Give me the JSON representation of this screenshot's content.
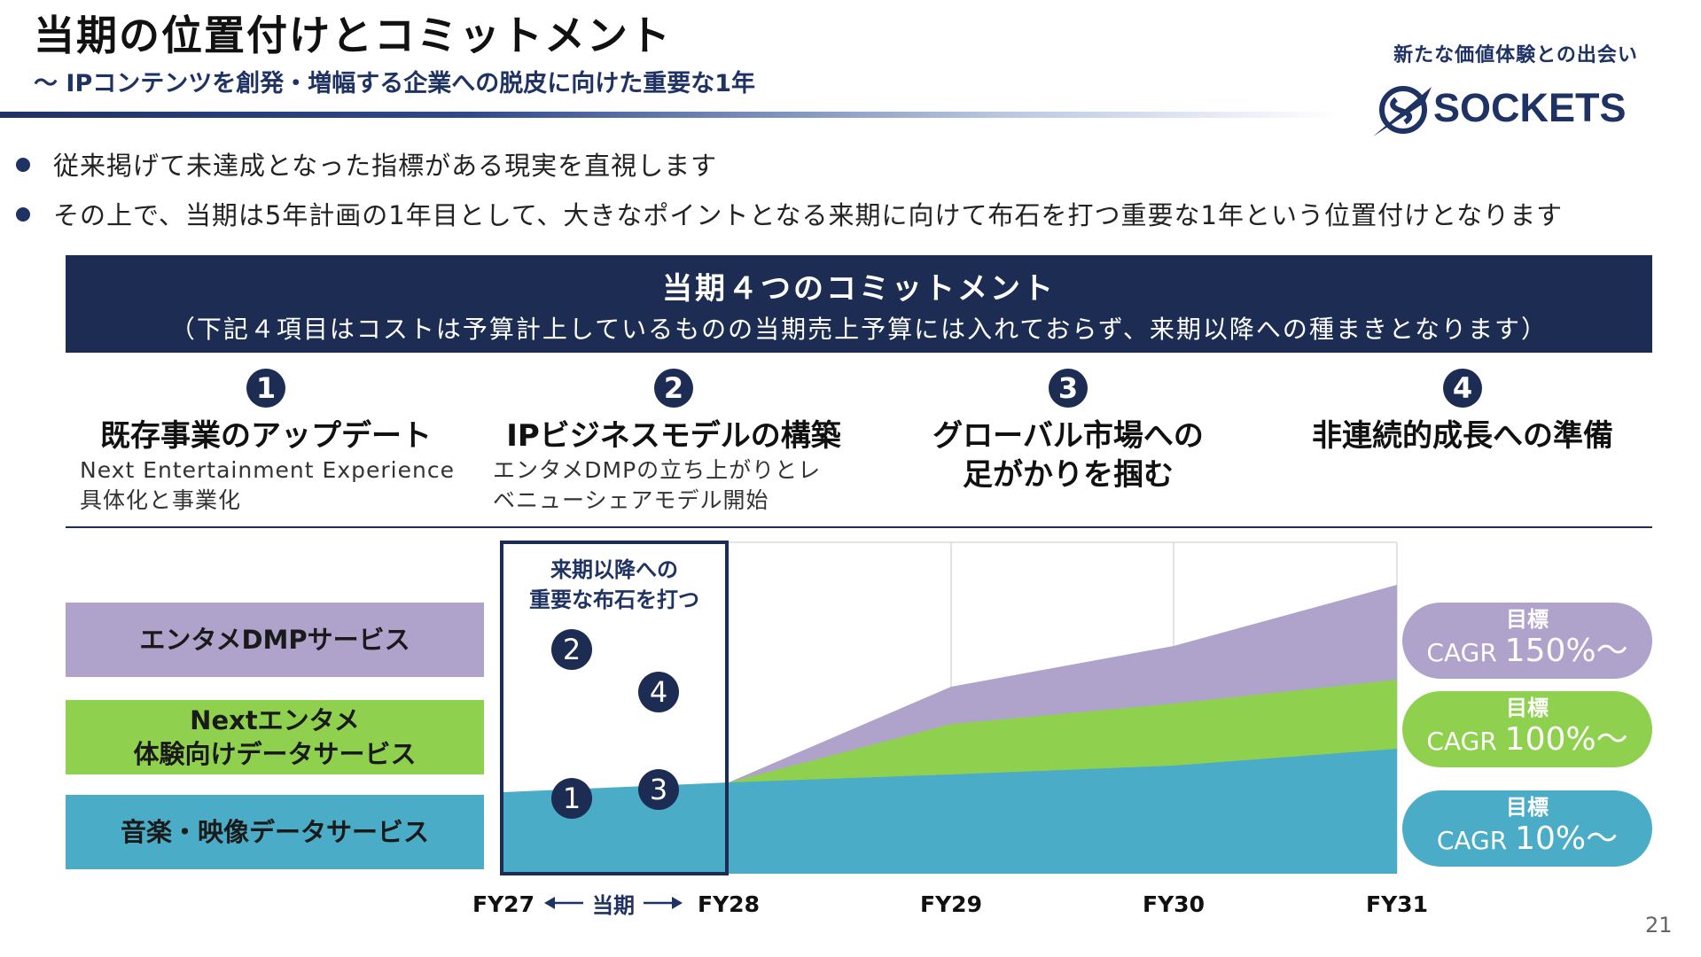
{
  "header": {
    "title": "当期の位置付けとコミットメント",
    "subtitle": "〜 IPコンテンツを創発・増幅する企業への脱皮に向けた重要な1年"
  },
  "logo": {
    "tagline": "新たな価値体験との出会い",
    "name": "SOCKETS"
  },
  "bullets": [
    "従来掲げて未達成となった指標がある現実を直視します",
    "その上で、当期は5年計画の1年目として、大きなポイントとなる来期に向けて布石を打つ重要な1年という位置付けとなります"
  ],
  "commitments": {
    "title": "当期４つのコミットメント",
    "note": "（下記４項目はコストは予算計上しているものの当期売上予算には入れておらず、来期以降への種まきとなります）",
    "items": [
      {
        "num": "1",
        "title": "既存事業のアップデート",
        "desc_lines": [
          "Next Entertainment Experience",
          "具体化と事業化"
        ]
      },
      {
        "num": "2",
        "title": "IPビジネスモデルの構築",
        "desc_lines": [
          "エンタメDMPの立ち上がりとレ",
          "ベニューシェアモデル開始"
        ]
      },
      {
        "num": "3",
        "title_lines": [
          "グローバル市場への",
          "足がかりを掴む"
        ]
      },
      {
        "num": "4",
        "title": "非連続的成長への準備"
      }
    ]
  },
  "segments": {
    "dmp": "エンタメDMPサービス",
    "next_lines": [
      "Nextエンタメ",
      "体験向けデータサービス"
    ],
    "music": "音楽・映像データサービス"
  },
  "focus": {
    "label_lines": [
      "来期以降への",
      "重要な布石を打つ"
    ],
    "markers": [
      "2",
      "4",
      "1",
      "3"
    ]
  },
  "x_axis": {
    "ticks": [
      "FY27",
      "FY28",
      "FY29",
      "FY30",
      "FY31"
    ],
    "current_period": "当期"
  },
  "targets": [
    {
      "head": "目標",
      "prefix": "CAGR ",
      "value": "150%〜",
      "color": "#afa2cb"
    },
    {
      "head": "目標",
      "prefix": "CAGR ",
      "value": "100%〜",
      "color": "#8fd14f"
    },
    {
      "head": "目標",
      "prefix": "CAGR ",
      "value": "10%〜",
      "color": "#4aacc6"
    }
  ],
  "page_number": "21",
  "colors": {
    "navy": "#1d2c52",
    "dmp": "#afa2cb",
    "next": "#8fd14f",
    "music": "#4aacc6"
  }
}
